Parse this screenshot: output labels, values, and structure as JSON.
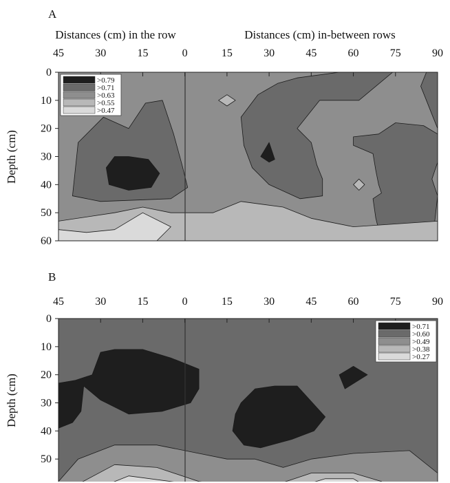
{
  "chart_data": [
    {
      "panel": "A",
      "type": "heatmap",
      "subtype": "filled-contour",
      "header_left": "Distances (cm) in the row",
      "header_right": "Distances (cm) in-between rows",
      "ylabel": "Depth (cm)",
      "x_ticks": [
        "45",
        "30",
        "15",
        "0",
        "15",
        "30",
        "45",
        "60",
        "75",
        "90"
      ],
      "y_ticks": [
        "0",
        "10",
        "20",
        "30",
        "40",
        "50",
        "60"
      ],
      "x_domain": [
        -45,
        90
      ],
      "ylim": [
        0,
        60
      ],
      "y_inverted": true,
      "legend_position": "top-left",
      "levels": [
        {
          "label": ">0.79",
          "min": 0.79,
          "color": "#1e1e1e"
        },
        {
          "label": ">0.71",
          "min": 0.71,
          "color": "#6a6a6a"
        },
        {
          "label": ">0.63",
          "min": 0.63,
          "color": "#8e8e8e"
        },
        {
          "label": ">0.55",
          "min": 0.55,
          "color": "#b8b8b8"
        },
        {
          "label": ">0.47",
          "min": 0.47,
          "color": "#dadada"
        }
      ],
      "background_level": 2,
      "regions": [
        {
          "level": 1,
          "points": [
            [
              -29,
              16
            ],
            [
              -38,
              25
            ],
            [
              -40,
              44
            ],
            [
              -30,
              46
            ],
            [
              -5,
              45
            ],
            [
              1,
              41
            ],
            [
              -1,
              33
            ],
            [
              -4,
              22
            ],
            [
              -8,
              10
            ],
            [
              -14,
              11
            ],
            [
              -20,
              20
            ]
          ]
        },
        {
          "level": 1,
          "points": [
            [
              21,
              26
            ],
            [
              20,
              16
            ],
            [
              26,
              8
            ],
            [
              33,
              4
            ],
            [
              40,
              2
            ],
            [
              55,
              0
            ],
            [
              74,
              0
            ],
            [
              62,
              10
            ],
            [
              48,
              10
            ],
            [
              40,
              20
            ],
            [
              45,
              25
            ],
            [
              47,
              33
            ],
            [
              49,
              38
            ],
            [
              49,
              44
            ],
            [
              41,
              45
            ],
            [
              30,
              40
            ],
            [
              24,
              34
            ]
          ]
        },
        {
          "level": 1,
          "points": [
            [
              60,
              23
            ],
            [
              60,
              26
            ],
            [
              67,
              29
            ],
            [
              68,
              35
            ],
            [
              69,
              40
            ],
            [
              70,
              43
            ],
            [
              67,
              45
            ],
            [
              68,
              52
            ],
            [
              70,
              60
            ],
            [
              82,
              60
            ],
            [
              89,
              53
            ],
            [
              90,
              44
            ],
            [
              88,
              38
            ],
            [
              90,
              32
            ],
            [
              90,
              22
            ],
            [
              85,
              19
            ],
            [
              75,
              18
            ],
            [
              69,
              22
            ]
          ]
        },
        {
          "level": 1,
          "points": [
            [
              86,
              0
            ],
            [
              90,
              0
            ],
            [
              90,
              20
            ],
            [
              88,
              15
            ],
            [
              86,
              10
            ],
            [
              84,
              5
            ]
          ]
        },
        {
          "level": 0,
          "points": [
            [
              -25,
              30
            ],
            [
              -28,
              34
            ],
            [
              -27,
              40
            ],
            [
              -20,
              42
            ],
            [
              -12,
              41
            ],
            [
              -9,
              36
            ],
            [
              -13,
              31
            ],
            [
              -20,
              30
            ]
          ]
        },
        {
          "level": 0,
          "points": [
            [
              30,
              25
            ],
            [
              32,
              31
            ],
            [
              30,
              32
            ],
            [
              27,
              30
            ]
          ]
        },
        {
          "level": 3,
          "points": [
            [
              -45,
              53
            ],
            [
              -25,
              50
            ],
            [
              -15,
              48
            ],
            [
              -5,
              50
            ],
            [
              10,
              50
            ],
            [
              20,
              46
            ],
            [
              35,
              48
            ],
            [
              45,
              52
            ],
            [
              60,
              55
            ],
            [
              90,
              53
            ],
            [
              90,
              60
            ],
            [
              -45,
              60
            ]
          ]
        },
        {
          "level": 4,
          "points": [
            [
              -45,
              56
            ],
            [
              -35,
              57
            ],
            [
              -25,
              56
            ],
            [
              -15,
              50
            ],
            [
              -5,
              55
            ],
            [
              -10,
              60
            ],
            [
              -45,
              60
            ]
          ]
        },
        {
          "level": 3,
          "points": [
            [
              15,
              8
            ],
            [
              18,
              10
            ],
            [
              15,
              12
            ],
            [
              12,
              10
            ]
          ]
        },
        {
          "level": 3,
          "points": [
            [
              62,
              38
            ],
            [
              64,
              40
            ],
            [
              62,
              42
            ],
            [
              60,
              40
            ]
          ]
        }
      ]
    },
    {
      "panel": "B",
      "type": "heatmap",
      "subtype": "filled-contour",
      "ylabel": "Depth (cm)",
      "x_ticks": [
        "45",
        "30",
        "15",
        "0",
        "15",
        "30",
        "45",
        "60",
        "75",
        "90"
      ],
      "y_ticks": [
        "0",
        "10",
        "20",
        "30",
        "40",
        "50",
        "60"
      ],
      "x_domain": [
        -45,
        90
      ],
      "ylim": [
        0,
        60
      ],
      "y_inverted": true,
      "legend_position": "top-right",
      "levels": [
        {
          "label": ">0.71",
          "min": 0.71,
          "color": "#1e1e1e"
        },
        {
          "label": ">0.60",
          "min": 0.6,
          "color": "#6a6a6a"
        },
        {
          "label": ">0.49",
          "min": 0.49,
          "color": "#8e8e8e"
        },
        {
          "label": ">0.38",
          "min": 0.38,
          "color": "#b8b8b8"
        },
        {
          "label": ">0.27",
          "min": 0.27,
          "color": "#dadada"
        }
      ],
      "background_level": 1,
      "regions": [
        {
          "level": 0,
          "points": [
            [
              -45,
              23
            ],
            [
              -39,
              22
            ],
            [
              -33,
              20
            ],
            [
              -30,
              12
            ],
            [
              -25,
              11
            ],
            [
              -15,
              11
            ],
            [
              -5,
              14
            ],
            [
              5,
              18
            ],
            [
              5,
              25
            ],
            [
              2,
              30
            ],
            [
              -8,
              33
            ],
            [
              -20,
              34
            ],
            [
              -30,
              29
            ],
            [
              -36,
              24
            ],
            [
              -37,
              33
            ],
            [
              -40,
              37
            ],
            [
              -45,
              39
            ]
          ]
        },
        {
          "level": 0,
          "points": [
            [
              18,
              34
            ],
            [
              20,
              30
            ],
            [
              25,
              25
            ],
            [
              32,
              24
            ],
            [
              40,
              24
            ],
            [
              50,
              35
            ],
            [
              46,
              40
            ],
            [
              38,
              43
            ],
            [
              27,
              46
            ],
            [
              21,
              45
            ],
            [
              17,
              40
            ]
          ]
        },
        {
          "level": 0,
          "points": [
            [
              55,
              20
            ],
            [
              60,
              17
            ],
            [
              65,
              20
            ],
            [
              57,
              25
            ]
          ]
        },
        {
          "level": 2,
          "points": [
            [
              -45,
              58
            ],
            [
              -38,
              50
            ],
            [
              -25,
              45
            ],
            [
              -10,
              45
            ],
            [
              5,
              48
            ],
            [
              15,
              50
            ],
            [
              25,
              50
            ],
            [
              35,
              53
            ],
            [
              45,
              50
            ],
            [
              60,
              48
            ],
            [
              80,
              47
            ],
            [
              90,
              55
            ],
            [
              90,
              60
            ],
            [
              -45,
              60
            ]
          ]
        },
        {
          "level": 3,
          "points": [
            [
              -40,
              60
            ],
            [
              -25,
              52
            ],
            [
              -10,
              53
            ],
            [
              5,
              58
            ],
            [
              20,
              60
            ],
            [
              -40,
              60
            ]
          ]
        },
        {
          "level": 3,
          "points": [
            [
              30,
              60
            ],
            [
              45,
              55
            ],
            [
              60,
              55
            ],
            [
              70,
              58
            ],
            [
              72,
              60
            ]
          ]
        },
        {
          "level": 4,
          "points": [
            [
              -30,
              60
            ],
            [
              -20,
              56
            ],
            [
              -5,
              58
            ],
            [
              10,
              60
            ],
            [
              -30,
              60
            ]
          ]
        },
        {
          "level": 4,
          "points": [
            [
              40,
              60
            ],
            [
              50,
              57
            ],
            [
              60,
              57
            ],
            [
              65,
              60
            ]
          ]
        }
      ]
    }
  ]
}
